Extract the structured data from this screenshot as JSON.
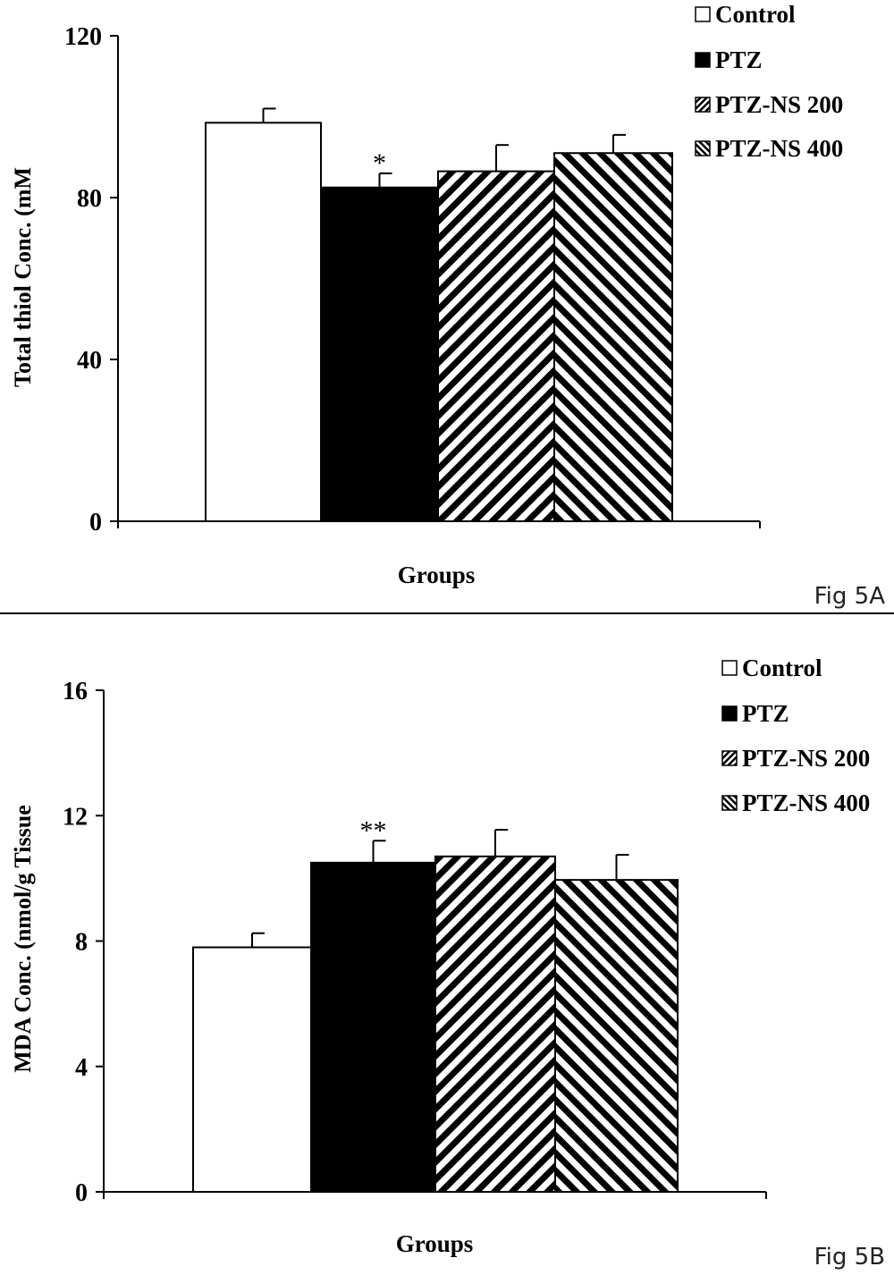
{
  "chart_data": [
    {
      "type": "bar",
      "ylabel": "Total thiol Conc. (mM",
      "xlabel": "Groups",
      "figure_label": "Fig 5A",
      "ylim": [
        0,
        120
      ],
      "yticks": [
        "0",
        "40",
        "80",
        "120"
      ],
      "legend_placement": "top-right",
      "categories": [
        "Control",
        "PTZ",
        "PTZ-NS 200",
        "PTZ-NS 400"
      ],
      "series": [
        {
          "values": [
            98.5,
            82.5,
            86.5,
            91
          ],
          "errors": [
            3.5,
            3.5,
            6.5,
            4.5
          ],
          "annotations": [
            "",
            "*",
            "",
            ""
          ]
        }
      ]
    },
    {
      "type": "bar",
      "ylabel": "MDA Conc. (nmol/g Tissue",
      "xlabel": "Groups",
      "figure_label": "Fig 5B",
      "ylim": [
        0,
        16
      ],
      "yticks": [
        "0",
        "4",
        "8",
        "12",
        "16"
      ],
      "legend_placement": "top-right",
      "categories": [
        "Control",
        "PTZ",
        "PTZ-NS 200",
        "PTZ-NS 400"
      ],
      "series": [
        {
          "values": [
            7.8,
            10.5,
            10.7,
            9.95
          ],
          "errors": [
            0.45,
            0.7,
            0.85,
            0.8
          ],
          "annotations": [
            "",
            "**",
            "",
            ""
          ]
        }
      ]
    }
  ]
}
